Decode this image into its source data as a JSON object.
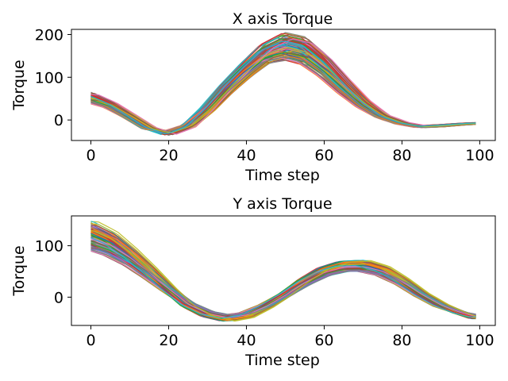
{
  "chart_data": [
    {
      "type": "line",
      "title": "X axis Torque",
      "xlabel": "Time step",
      "ylabel": "Torque",
      "xlim": [
        -5,
        104
      ],
      "ylim": [
        -48,
        212
      ],
      "xticks": [
        0,
        20,
        40,
        60,
        80,
        100
      ],
      "yticks": [
        0,
        100,
        200
      ],
      "series_count": 100,
      "envelope": {
        "x": [
          0,
          5,
          10,
          15,
          20,
          25,
          30,
          35,
          40,
          45,
          50,
          55,
          60,
          65,
          70,
          75,
          80,
          85,
          90,
          95,
          99
        ],
        "y_low": [
          40,
          28,
          5,
          -22,
          -26,
          -12,
          20,
          62,
          100,
          132,
          140,
          128,
          98,
          60,
          28,
          5,
          -10,
          -18,
          -16,
          -12,
          -10
        ],
        "y_mid": [
          52,
          35,
          8,
          -20,
          -30,
          -14,
          25,
          72,
          115,
          150,
          170,
          160,
          125,
          80,
          38,
          8,
          -8,
          -16,
          -14,
          -10,
          -8
        ],
        "y_high": [
          65,
          42,
          12,
          -17,
          -36,
          -18,
          30,
          85,
          135,
          180,
          205,
          195,
          155,
          102,
          50,
          12,
          -5,
          -13,
          -11,
          -8,
          -6
        ]
      }
    },
    {
      "type": "line",
      "title": "Y axis Torque",
      "xlabel": "Time step",
      "ylabel": "Torque",
      "xlim": [
        -5,
        104
      ],
      "ylim": [
        -55,
        158
      ],
      "xticks": [
        0,
        20,
        40,
        60,
        80,
        100
      ],
      "yticks": [
        0,
        100
      ],
      "series_count": 100,
      "envelope": {
        "x": [
          0,
          5,
          10,
          15,
          20,
          25,
          30,
          35,
          40,
          45,
          50,
          55,
          60,
          65,
          70,
          75,
          80,
          85,
          90,
          95,
          99
        ],
        "y_low": [
          92,
          80,
          62,
          38,
          12,
          -12,
          -28,
          -35,
          -30,
          -15,
          5,
          25,
          42,
          50,
          50,
          42,
          25,
          2,
          -18,
          -30,
          -35
        ],
        "y_mid": [
          120,
          105,
          80,
          48,
          15,
          -15,
          -33,
          -40,
          -34,
          -18,
          5,
          30,
          50,
          60,
          60,
          50,
          30,
          4,
          -16,
          -30,
          -37
        ],
        "y_high": [
          148,
          128,
          95,
          58,
          18,
          -18,
          -38,
          -47,
          -40,
          -20,
          5,
          35,
          58,
          70,
          72,
          60,
          36,
          8,
          -14,
          -31,
          -42
        ]
      }
    }
  ],
  "colors": [
    "#1f77b4",
    "#ff7f0e",
    "#2ca02c",
    "#d62728",
    "#9467bd",
    "#8c564b",
    "#e377c2",
    "#7f7f7f",
    "#bcbd22",
    "#17becf"
  ]
}
